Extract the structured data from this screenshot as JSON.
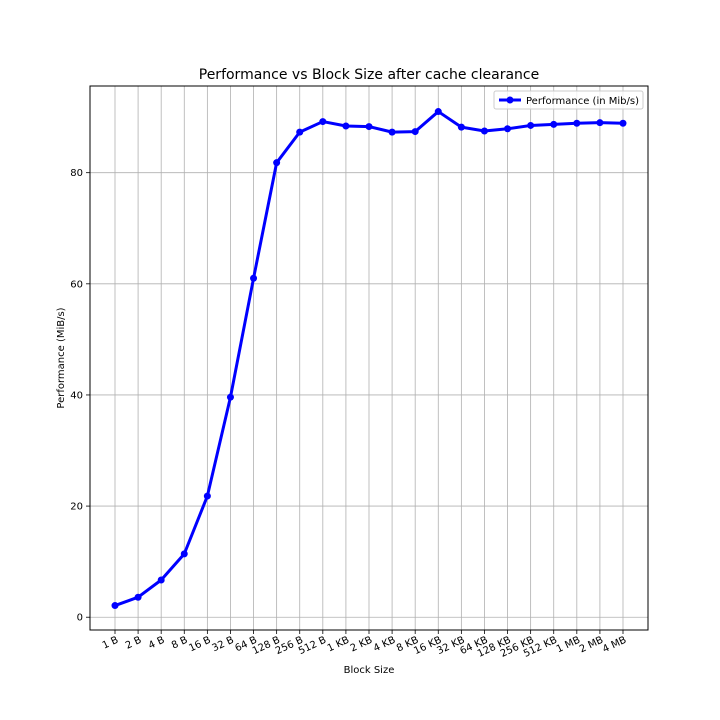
{
  "chart_data": {
    "type": "line",
    "title": "Performance vs Block Size after cache clearance",
    "xlabel": "Block Size",
    "ylabel": "Performance (MiB/s)",
    "categories": [
      "1 B",
      "2 B",
      "4 B",
      "8 B",
      "16 B",
      "32 B",
      "64 B",
      "128 B",
      "256 B",
      "512 B",
      "1 KB",
      "2 KB",
      "4 KB",
      "8 KB",
      "16 KB",
      "32 KB",
      "64 KB",
      "128 KB",
      "256 KB",
      "512 KB",
      "1 MB",
      "2 MB",
      "4 MB"
    ],
    "series": [
      {
        "name": "Performance (in Mib/s)",
        "color": "#0000ff",
        "values": [
          2.1,
          3.6,
          6.7,
          11.4,
          21.8,
          39.6,
          61.0,
          81.8,
          87.3,
          89.2,
          88.4,
          88.3,
          87.3,
          87.4,
          91.0,
          88.2,
          87.5,
          87.9,
          88.5,
          88.7,
          88.9,
          89.0,
          88.9
        ]
      }
    ],
    "yticks": [
      0,
      20,
      40,
      60,
      80
    ],
    "ylim": [
      -2.3,
      95.6
    ],
    "grid": true,
    "legend_position": "top-right"
  }
}
